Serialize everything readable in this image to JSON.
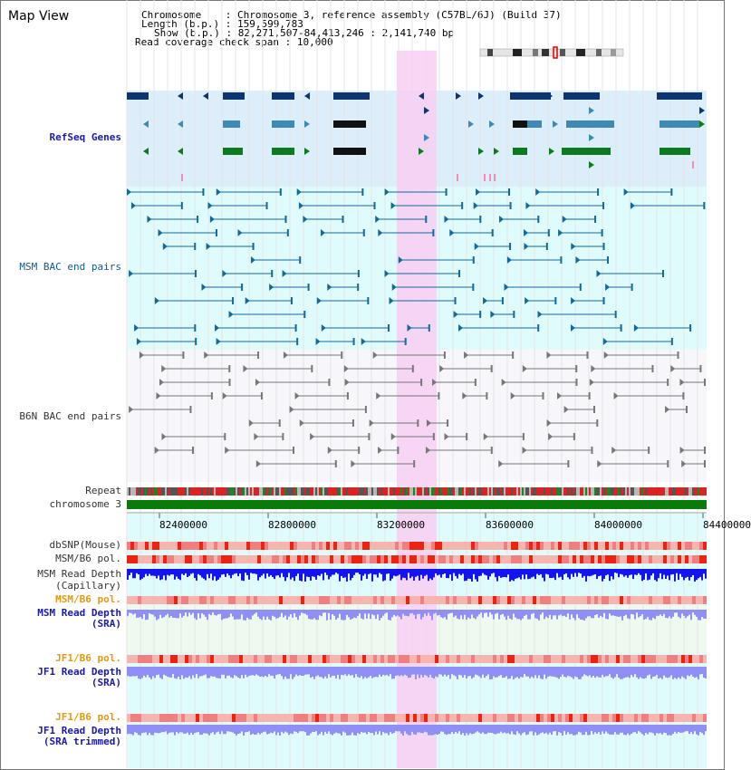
{
  "view_title": "Map View",
  "info": {
    "chromosome_label": "Chromosome",
    "chromosome_value": "Chromosome 3, reference assembly (C57BL/6J) (Build 37)",
    "length_label": "Length (b.p.)",
    "length_value": "159,599,783",
    "show_label": "Show (b.p.)",
    "show_value": "82,271,507-84,413,246 : 2,141,740 bp",
    "coverage_label": "Read coverage check span",
    "coverage_value": "10,000"
  },
  "tracks": {
    "refseq": "RefSeq Genes",
    "msm_bac": "MSM BAC end pairs",
    "b6n_bac": "B6N BAC end pairs",
    "repeat": "Repeat",
    "chromosome": "chromosome 3",
    "dbsnp": "dbSNP(Mouse)",
    "msm_b6_pol_1": "MSM/B6 pol.",
    "msm_read_depth_cap_1": "MSM Read Depth",
    "msm_read_depth_cap_2": "(Capillary)",
    "msm_b6_pol_2": "MSM/B6 pol.",
    "msm_read_depth_sra_1": "MSM Read Depth",
    "msm_read_depth_sra_2": "(SRA)",
    "jf1_b6_pol_1": "JF1/B6 pol.",
    "jf1_read_depth_sra_1": "JF1 Read Depth",
    "jf1_read_depth_sra_2": "(SRA)",
    "jf1_b6_pol_2": "JF1/B6 pol.",
    "jf1_read_depth_trim_1": "JF1 Read Depth",
    "jf1_read_depth_trim_2": "(SRA trimmed)"
  },
  "axis_ticks": [
    "82400000",
    "82800000",
    "83200000",
    "83600000",
    "84000000",
    "84400000"
  ],
  "colors": {
    "refseq_bg": "#dceefa",
    "msm_bg": "#e0fbfb",
    "b6n_bg": "#f6f6fb",
    "highlight": "#f7d2f2",
    "msm_feature": "#126a9a",
    "b6n_feature": "#777777",
    "gene_dark": "#0d3670",
    "gene_mid": "#3f8ab5",
    "gene_green": "#0d7a1f",
    "chromosome_bar": "#0a7a0a",
    "depth_blue": "#1414f0",
    "depth_light": "#8f8ff5"
  }
}
